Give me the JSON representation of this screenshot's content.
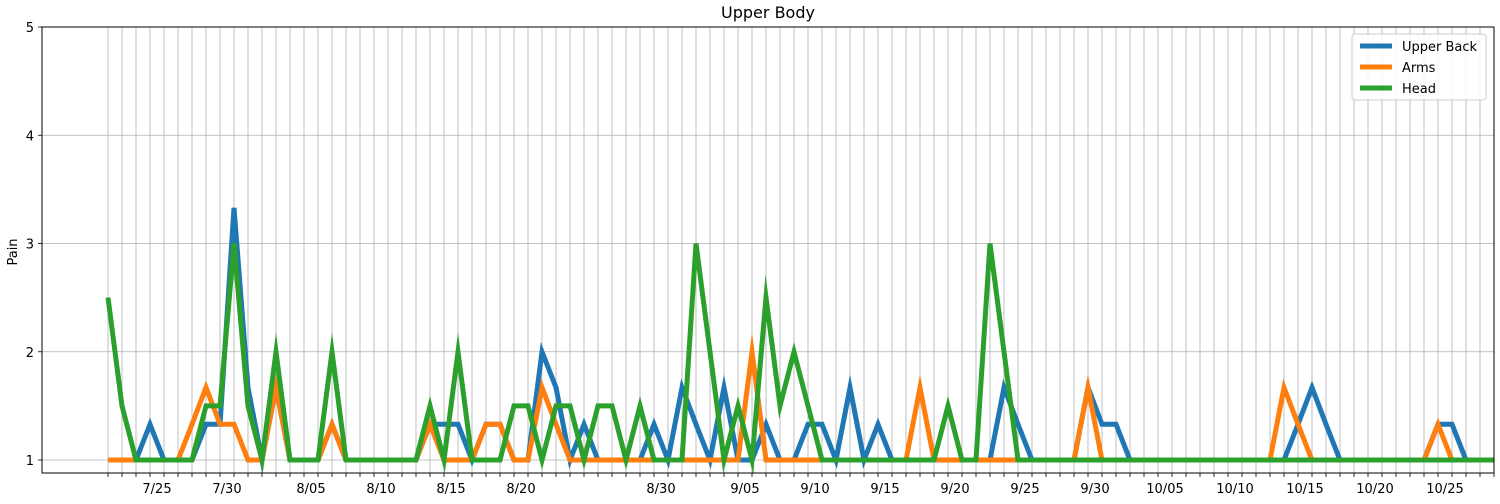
{
  "chart_data": {
    "type": "line",
    "title": "Upper Body",
    "xlabel": "",
    "ylabel": "Pain",
    "ylim": [
      1,
      5
    ],
    "yticks": [
      1,
      2,
      3,
      4,
      5
    ],
    "grid": true,
    "legend_position": "top-right",
    "x": [
      "7/22",
      "7/23",
      "7/24",
      "7/25",
      "7/26",
      "7/27",
      "7/28",
      "7/29",
      "7/30",
      "7/31",
      "8/01",
      "8/02",
      "8/03",
      "8/04",
      "8/05",
      "8/06",
      "8/07",
      "8/08",
      "8/09",
      "8/10",
      "8/11",
      "8/12",
      "8/13",
      "8/14",
      "8/15",
      "8/16",
      "8/17",
      "8/18",
      "8/19",
      "8/20",
      "8/21",
      "8/22",
      "8/23",
      "8/24",
      "8/25",
      "8/26",
      "8/27",
      "8/28",
      "8/29",
      "8/30",
      "8/31",
      "9/01",
      "9/02",
      "9/03",
      "9/04",
      "9/05",
      "9/06",
      "9/07",
      "9/08",
      "9/09",
      "9/10",
      "9/11",
      "9/12",
      "9/13",
      "9/14",
      "9/15",
      "9/16",
      "9/17",
      "9/18",
      "9/19",
      "9/20",
      "9/21",
      "9/22",
      "9/23",
      "9/24",
      "9/25",
      "9/26",
      "9/27",
      "9/28",
      "9/29",
      "9/30",
      "10/01",
      "10/02",
      "10/03",
      "10/04",
      "10/05",
      "10/06",
      "10/07",
      "10/08",
      "10/09",
      "10/10",
      "10/11",
      "10/12",
      "10/13",
      "10/14",
      "10/15",
      "10/16",
      "10/17",
      "10/18",
      "10/19",
      "10/20",
      "10/21",
      "10/22",
      "10/23",
      "10/24",
      "10/25",
      "10/26",
      "10/27",
      "10/28",
      "10/29"
    ],
    "xtick_labels": [
      "7/25",
      "7/30",
      "8/05",
      "8/10",
      "8/15",
      "8/20",
      "8/30",
      "9/05",
      "9/10",
      "9/15",
      "9/20",
      "9/25",
      "9/30",
      "10/05",
      "10/10",
      "10/15",
      "10/20",
      "10/25"
    ],
    "series": [
      {
        "name": "Upper Back",
        "color": "#1f77b4",
        "values": [
          1,
          1,
          1,
          1.33,
          1,
          1,
          1,
          1.33,
          1.33,
          3.33,
          1.67,
          1,
          1.67,
          1,
          1,
          1,
          1.33,
          1,
          1,
          1,
          1,
          1,
          1,
          1.33,
          1.33,
          1.33,
          1,
          1.33,
          1.33,
          1,
          1,
          2,
          1.67,
          1,
          1.33,
          1,
          1,
          1,
          1,
          1.33,
          1,
          1.67,
          1.33,
          1,
          1.67,
          1,
          1,
          1.33,
          1,
          1,
          1.33,
          1.33,
          1,
          1.67,
          1,
          1.33,
          1,
          1,
          1,
          1,
          1,
          1,
          1,
          1,
          1.67,
          1.33,
          1,
          1,
          1,
          1,
          1.67,
          1.33,
          1.33,
          1,
          1,
          1,
          1,
          1,
          1,
          1,
          1,
          1,
          1,
          1,
          1,
          1.33,
          1.67,
          1.33,
          1,
          1,
          1,
          1,
          1,
          1,
          1,
          1.33,
          1.33,
          1,
          1,
          1
        ]
      },
      {
        "name": "Arms",
        "color": "#ff7f0e",
        "values": [
          1,
          1,
          1,
          1,
          1,
          1,
          1.33,
          1.67,
          1.33,
          1.33,
          1,
          1,
          1.67,
          1,
          1,
          1,
          1.33,
          1,
          1,
          1,
          1,
          1,
          1,
          1.33,
          1,
          1,
          1,
          1.33,
          1.33,
          1,
          1,
          1.67,
          1.33,
          1,
          1,
          1,
          1,
          1,
          1,
          1,
          1,
          1,
          1,
          1,
          1,
          1,
          2,
          1,
          1,
          1,
          1,
          1,
          1,
          1,
          1,
          1,
          1,
          1,
          1.67,
          1,
          1,
          1,
          1,
          1,
          1,
          1,
          1,
          1,
          1,
          1,
          1.67,
          1,
          1,
          1,
          1,
          1,
          1,
          1,
          1,
          1,
          1,
          1,
          1,
          1,
          1.67,
          1.33,
          1,
          1,
          1,
          1,
          1,
          1,
          1,
          1,
          1,
          1.33,
          1,
          1,
          1,
          1
        ]
      },
      {
        "name": "Head",
        "color": "#2ca02c",
        "values": [
          2.5,
          1.5,
          1,
          1,
          1,
          1,
          1,
          1.5,
          1.5,
          3,
          1.5,
          1,
          2,
          1,
          1,
          1,
          2,
          1,
          1,
          1,
          1,
          1,
          1,
          1.5,
          1,
          2,
          1,
          1,
          1,
          1.5,
          1.5,
          1,
          1.5,
          1.5,
          1,
          1.5,
          1.5,
          1,
          1.5,
          1,
          1,
          1,
          3,
          2,
          1,
          1.5,
          1,
          2.5,
          1.5,
          2,
          1.5,
          1,
          1,
          1,
          1,
          1,
          1,
          1,
          1,
          1,
          1.5,
          1,
          1,
          3,
          2,
          1,
          1,
          1,
          1,
          1,
          1,
          1,
          1,
          1,
          1,
          1,
          1,
          1,
          1,
          1,
          1,
          1,
          1,
          1,
          1,
          1,
          1,
          1,
          1,
          1,
          1,
          1,
          1,
          1,
          1,
          1,
          1,
          1,
          1,
          1
        ]
      }
    ]
  }
}
